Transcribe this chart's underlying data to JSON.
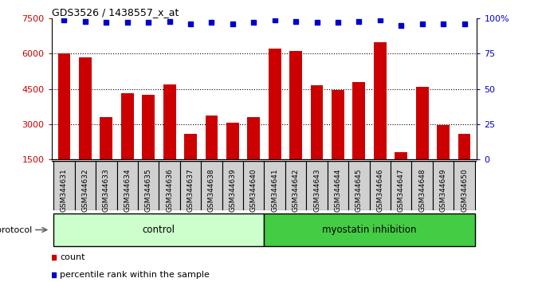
{
  "title": "GDS3526 / 1438557_x_at",
  "samples": [
    "GSM344631",
    "GSM344632",
    "GSM344633",
    "GSM344634",
    "GSM344635",
    "GSM344636",
    "GSM344637",
    "GSM344638",
    "GSM344639",
    "GSM344640",
    "GSM344641",
    "GSM344642",
    "GSM344643",
    "GSM344644",
    "GSM344645",
    "GSM344646",
    "GSM344647",
    "GSM344648",
    "GSM344649",
    "GSM344650"
  ],
  "counts": [
    6000,
    5850,
    3300,
    4300,
    4250,
    4700,
    2600,
    3350,
    3050,
    3300,
    6200,
    6100,
    4650,
    4450,
    4800,
    6500,
    1800,
    4600,
    2950,
    2600
  ],
  "percentiles": [
    99,
    98,
    97,
    97,
    97,
    98,
    96,
    97,
    96,
    97,
    99,
    98,
    97,
    97,
    98,
    99,
    95,
    96,
    96,
    96
  ],
  "control_count": 10,
  "ymin": 1500,
  "ymax": 7500,
  "yticks_left": [
    1500,
    3000,
    4500,
    6000,
    7500
  ],
  "yticks_right": [
    0,
    25,
    50,
    75,
    100
  ],
  "bar_color": "#cc0000",
  "dot_color": "#0000cc",
  "control_color": "#ccffcc",
  "myostatin_color": "#44cc44",
  "tick_bg_color": "#d0d0d0",
  "grid_color": "#000000"
}
